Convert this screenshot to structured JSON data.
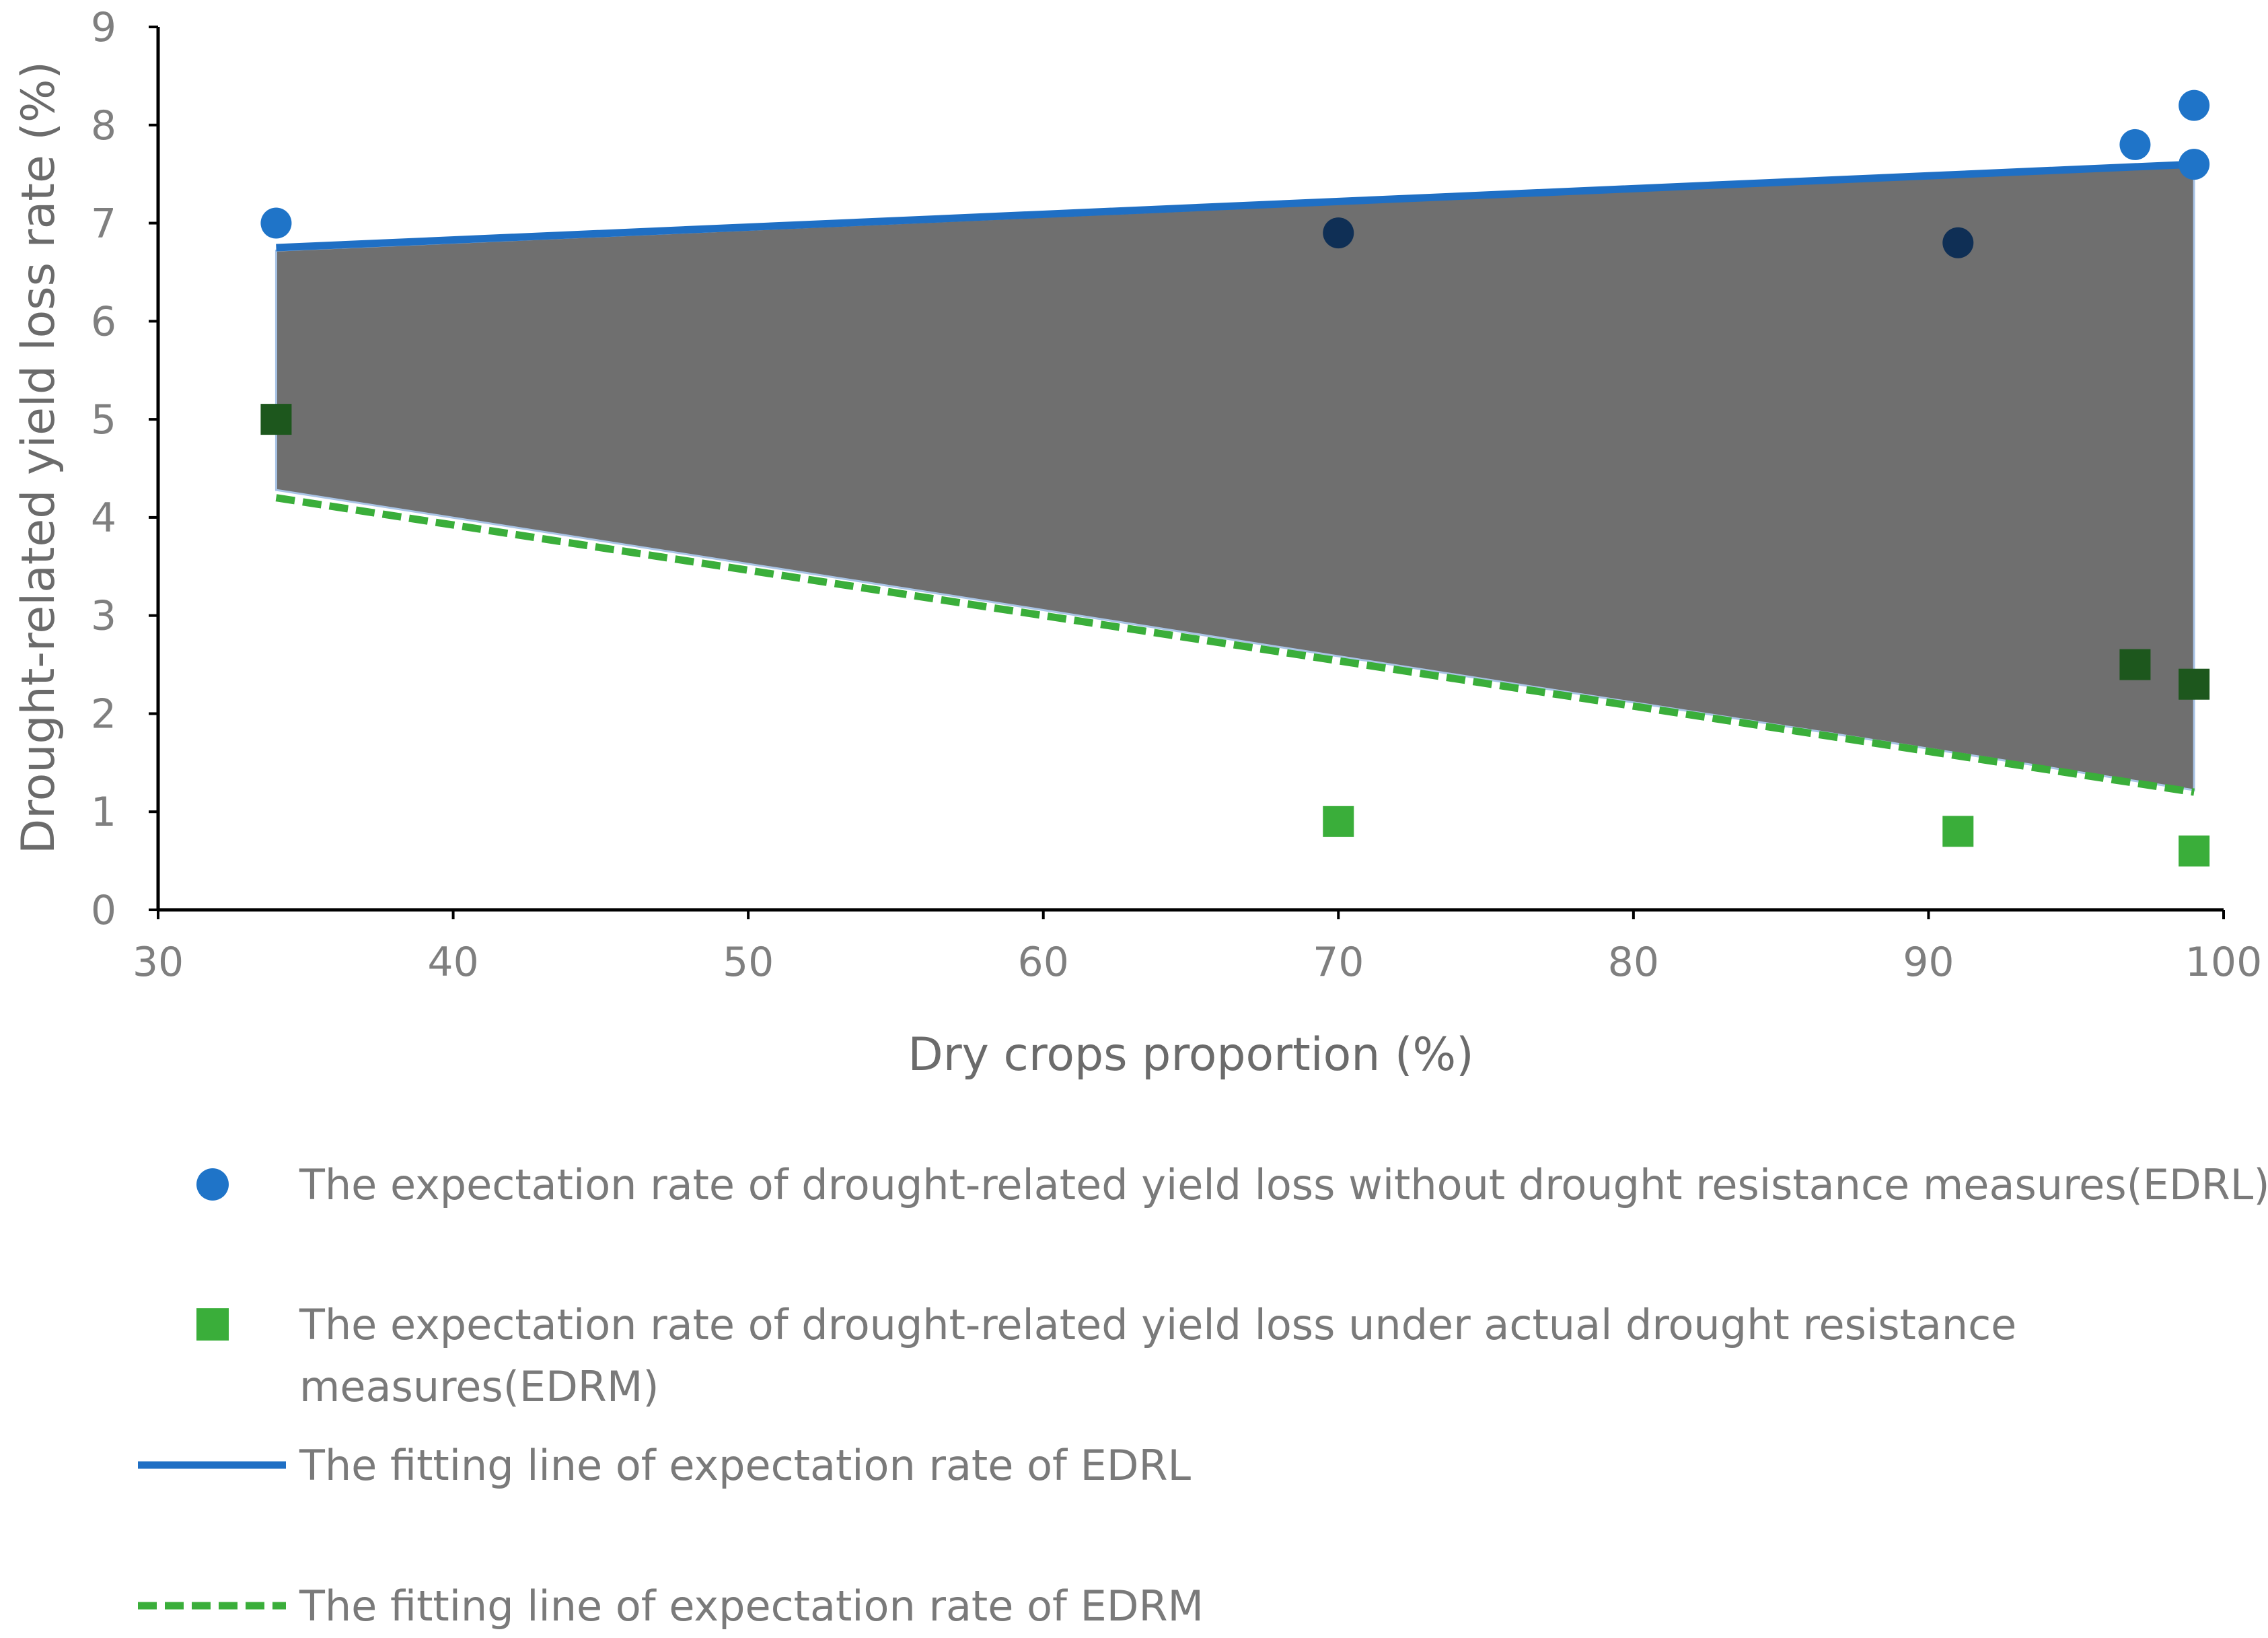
{
  "chart_data": {
    "type": "scatter",
    "title": "",
    "xlabel": "Dry crops proportion (%)",
    "ylabel": "Drought-related yield loss rate (%)",
    "xlim": [
      30,
      100
    ],
    "ylim": [
      0,
      9
    ],
    "x_ticks": [
      30,
      40,
      50,
      60,
      70,
      80,
      90,
      100
    ],
    "y_ticks": [
      0,
      1,
      2,
      3,
      4,
      5,
      6,
      7,
      8,
      9
    ],
    "grid": false,
    "series": [
      {
        "name": "EDRL",
        "kind": "points",
        "marker": "circle",
        "color": "#1f74c8",
        "points": [
          [
            34,
            7.0
          ],
          [
            70,
            6.9
          ],
          [
            91,
            6.8
          ],
          [
            97,
            7.8
          ],
          [
            99,
            8.2
          ],
          [
            99,
            7.6
          ]
        ]
      },
      {
        "name": "EDRM",
        "kind": "points",
        "marker": "square",
        "color": "#3aae3a",
        "points": [
          [
            34,
            5.0
          ],
          [
            70,
            0.9
          ],
          [
            91,
            0.8
          ],
          [
            97,
            2.5
          ],
          [
            99,
            2.3
          ],
          [
            99,
            0.6
          ]
        ]
      },
      {
        "name": "EDRL fit",
        "kind": "line",
        "style": "solid",
        "color": "#1f6fc4",
        "points": [
          [
            34,
            6.75
          ],
          [
            99,
            7.6
          ]
        ]
      },
      {
        "name": "EDRM fit",
        "kind": "line",
        "style": "dashed",
        "color": "#3aae3a",
        "points": [
          [
            34,
            4.2
          ],
          [
            99,
            1.2
          ]
        ]
      }
    ],
    "band": {
      "color": "#6f6f6f",
      "upper": [
        [
          34,
          6.72
        ],
        [
          99,
          7.58
        ]
      ],
      "lower": [
        [
          34,
          4.28
        ],
        [
          99,
          1.22
        ]
      ]
    },
    "legend": {
      "placement": "bottom",
      "entries": [
        {
          "symbol": "circle",
          "color": "#1f74c8",
          "lines": [
            "The expectation rate of drought-related yield loss without drought resistance measures(EDRL)"
          ]
        },
        {
          "symbol": "square",
          "color": "#3aae3a",
          "lines": [
            "The expectation rate of drought-related yield loss under actual drought resistance",
            "measures(EDRM)"
          ]
        },
        {
          "symbol": "solid-line",
          "color": "#1f6fc4",
          "lines": [
            "The fitting line of expectation rate of EDRL"
          ]
        },
        {
          "symbol": "dashed-line",
          "color": "#3aae3a",
          "lines": [
            "The fitting line of expectation rate of EDRM"
          ]
        }
      ]
    }
  }
}
